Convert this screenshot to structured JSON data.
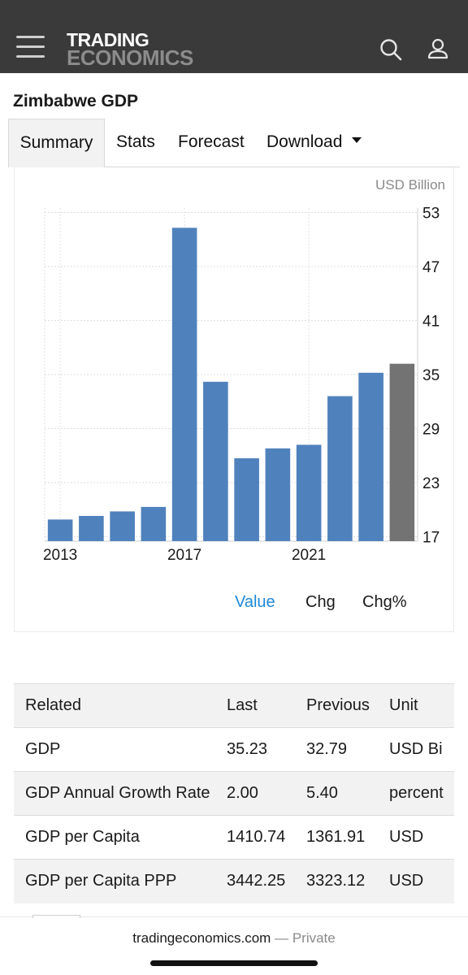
{
  "header": {
    "logo_line1": "TRADING",
    "logo_line2": "ECONOMICS",
    "icons": [
      "hamburger-menu-icon",
      "search-icon",
      "user-icon"
    ],
    "bar_color": "#3a3a3a"
  },
  "page": {
    "title": "Zimbabwe GDP"
  },
  "tabs": [
    {
      "label": "Summary"
    },
    {
      "label": "Stats"
    },
    {
      "label": "Forecast"
    },
    {
      "label": "Download"
    }
  ],
  "chart_switch": {
    "value": "Value",
    "chg": "Chg",
    "chg_pct": "Chg%",
    "active_color": "#1e88d8"
  },
  "chart_data": {
    "type": "bar",
    "unit_label": "USD Billion",
    "x": [
      2013,
      2014,
      2015,
      2016,
      2017,
      2018,
      2019,
      2020,
      2021,
      2022,
      2023,
      2024
    ],
    "values": [
      18.9,
      19.3,
      19.8,
      20.3,
      51.3,
      34.2,
      25.7,
      26.8,
      27.2,
      32.6,
      35.2,
      36.2
    ],
    "x_tick_labels": [
      "2013",
      "2017",
      "2021"
    ],
    "y_ticks": [
      17,
      23,
      29,
      35,
      41,
      47,
      53
    ],
    "ylim": [
      16.5,
      53.5
    ],
    "y_axis_side": "right",
    "bar_color": "#4f81bd",
    "highlight_bar_color": "#737373",
    "highlight_index": 11,
    "grid": true
  },
  "related": {
    "headers": [
      "Related",
      "Last",
      "Previous",
      "Unit"
    ],
    "rows": [
      [
        "GDP",
        "35.23",
        "32.79",
        "USD Bi"
      ],
      [
        "GDP Annual Growth Rate",
        "2.00",
        "5.40",
        "percent"
      ],
      [
        "GDP per Capita",
        "1410.74",
        "1361.91",
        "USD"
      ],
      [
        "GDP per Capita PPP",
        "3442.25",
        "3323.12",
        "USD"
      ]
    ]
  },
  "footer": {
    "domain": "tradingeconomics.com",
    "separator": "—",
    "mode": "Private"
  }
}
